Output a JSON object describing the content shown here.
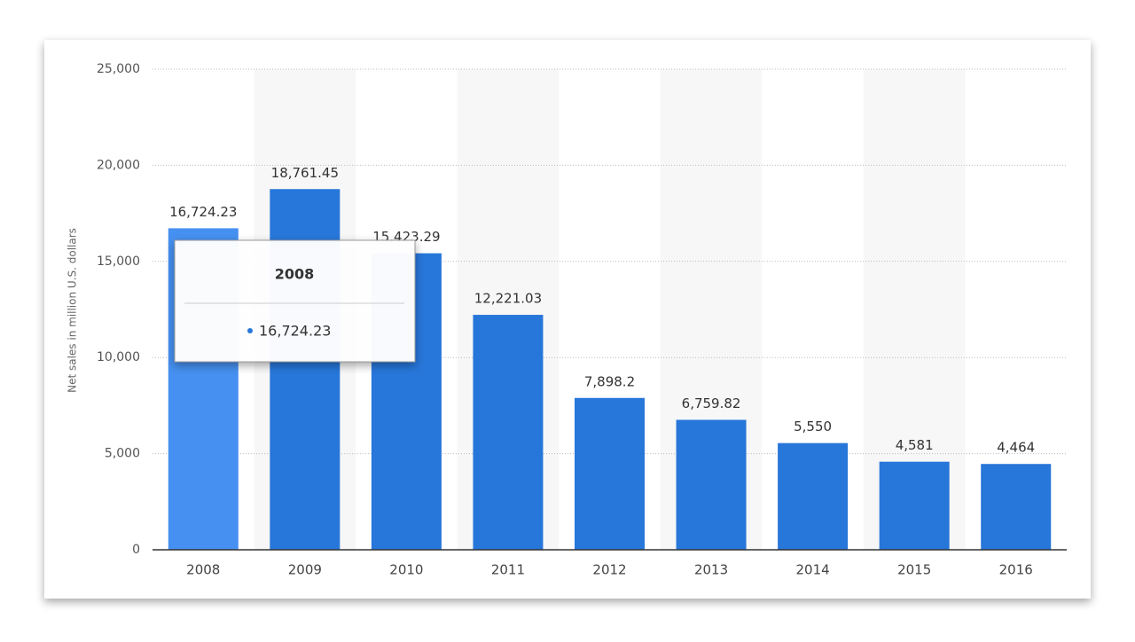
{
  "chart_data": {
    "type": "bar",
    "y_axis_label": "Net sales in million U.S. dollars",
    "categories": [
      "2008",
      "2009",
      "2010",
      "2011",
      "2012",
      "2013",
      "2014",
      "2015",
      "2016"
    ],
    "values": [
      16724.23,
      18761.45,
      15423.29,
      12221.03,
      7898.2,
      6759.82,
      5550,
      4581,
      4464
    ],
    "value_labels": [
      "16,724.23",
      "18,761.45",
      "15,423.29",
      "12,221.03",
      "7,898.2",
      "6,759.82",
      "5,550",
      "4,581",
      "4,464"
    ],
    "colors": [
      "#4590f0",
      "#2776d9",
      "#2776d9",
      "#2776d9",
      "#2776d9",
      "#2776d9",
      "#2776d9",
      "#2776d9",
      "#2776d9"
    ],
    "ylim": [
      0,
      25000
    ],
    "yticks": [
      0,
      {
        "value": 5000,
        "label": "5,000"
      },
      {
        "value": 10000,
        "label": "10,000"
      },
      {
        "value": 15000,
        "label": "15,000"
      },
      {
        "value": 20000,
        "label": "20,000"
      },
      {
        "value": 25000,
        "label": "25,000"
      }
    ],
    "grid": true,
    "tooltip": {
      "title": "2008",
      "value": "16,724.23"
    }
  }
}
